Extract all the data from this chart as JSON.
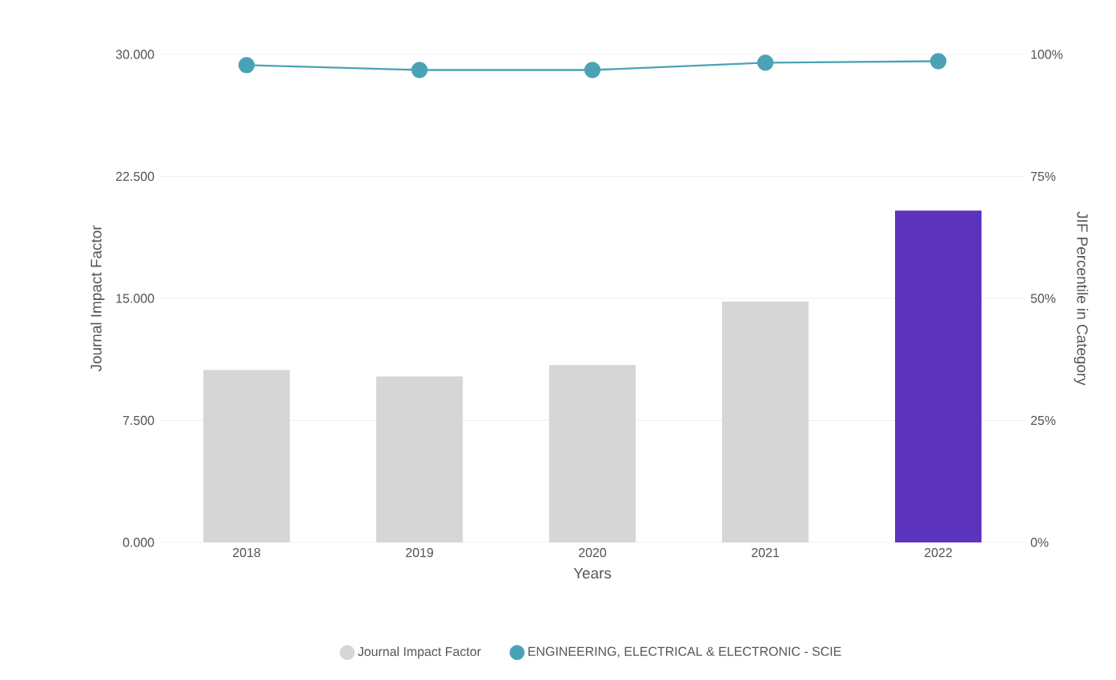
{
  "chart_data": {
    "type": "bar",
    "xlabel": "Years",
    "ylabel": "Journal Impact Factor",
    "y2label": "JIF Percentile in Category",
    "categories": [
      "2018",
      "2019",
      "2020",
      "2021",
      "2022"
    ],
    "series": [
      {
        "name": "Journal Impact Factor",
        "color": "#d6d6d6",
        "colors": [
          "#d6d6d6",
          "#d6d6d6",
          "#d6d6d6",
          "#d6d6d6",
          "#5c33bc"
        ],
        "values": [
          10.6,
          10.2,
          10.9,
          14.8,
          20.4
        ]
      },
      {
        "name": "ENGINEERING, ELECTRICAL & ELECTRONIC - SCIE",
        "type": "line",
        "axis": "y2",
        "color": "#4aa3b5",
        "values": [
          97.8,
          96.8,
          96.8,
          98.3,
          98.6
        ]
      }
    ],
    "ylim": [
      0,
      30
    ],
    "yticks": [
      {
        "value": 0,
        "label": "0.000"
      },
      {
        "value": 7.5,
        "label": "7.500"
      },
      {
        "value": 15,
        "label": "15.000"
      },
      {
        "value": 22.5,
        "label": "22.500"
      },
      {
        "value": 30,
        "label": "30.000"
      }
    ],
    "y2lim": [
      0,
      100
    ],
    "y2ticks": [
      {
        "value": 0,
        "label": "0%"
      },
      {
        "value": 25,
        "label": "25%"
      },
      {
        "value": 50,
        "label": "50%"
      },
      {
        "value": 75,
        "label": "75%"
      },
      {
        "value": 100,
        "label": "100%"
      }
    ],
    "grid": "y",
    "legend": "bottom",
    "marker": "circle"
  }
}
